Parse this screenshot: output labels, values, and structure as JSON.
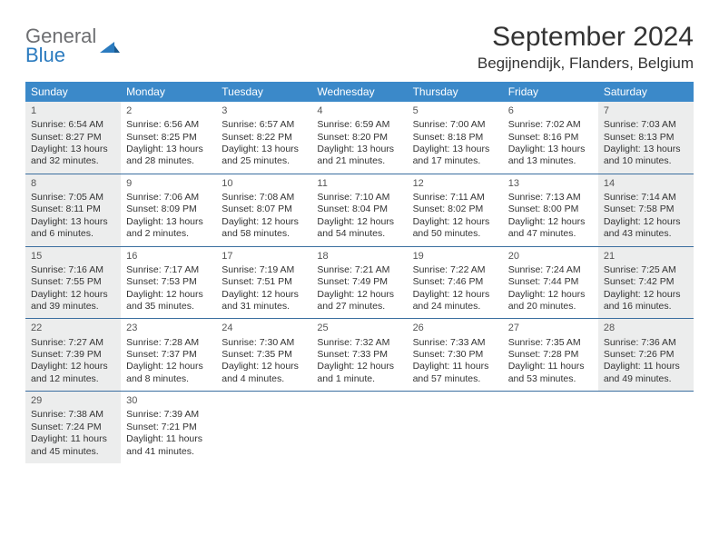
{
  "logo": {
    "text_general": "General",
    "text_blue": "Blue"
  },
  "header": {
    "month_title": "September 2024",
    "location": "Begijnendijk, Flanders, Belgium"
  },
  "colors": {
    "header_bar": "#3b89c9",
    "row_divider": "#3b6fa0",
    "shaded_cell": "#eceded",
    "logo_gray": "#6d6e71",
    "logo_blue": "#2b7bbf",
    "text": "#333333",
    "background": "#ffffff"
  },
  "calendar": {
    "day_headers": [
      "Sunday",
      "Monday",
      "Tuesday",
      "Wednesday",
      "Thursday",
      "Friday",
      "Saturday"
    ],
    "weeks": [
      [
        {
          "day": "1",
          "shaded": true,
          "sunrise": "Sunrise: 6:54 AM",
          "sunset": "Sunset: 8:27 PM",
          "daylight1": "Daylight: 13 hours",
          "daylight2": "and 32 minutes."
        },
        {
          "day": "2",
          "shaded": false,
          "sunrise": "Sunrise: 6:56 AM",
          "sunset": "Sunset: 8:25 PM",
          "daylight1": "Daylight: 13 hours",
          "daylight2": "and 28 minutes."
        },
        {
          "day": "3",
          "shaded": false,
          "sunrise": "Sunrise: 6:57 AM",
          "sunset": "Sunset: 8:22 PM",
          "daylight1": "Daylight: 13 hours",
          "daylight2": "and 25 minutes."
        },
        {
          "day": "4",
          "shaded": false,
          "sunrise": "Sunrise: 6:59 AM",
          "sunset": "Sunset: 8:20 PM",
          "daylight1": "Daylight: 13 hours",
          "daylight2": "and 21 minutes."
        },
        {
          "day": "5",
          "shaded": false,
          "sunrise": "Sunrise: 7:00 AM",
          "sunset": "Sunset: 8:18 PM",
          "daylight1": "Daylight: 13 hours",
          "daylight2": "and 17 minutes."
        },
        {
          "day": "6",
          "shaded": false,
          "sunrise": "Sunrise: 7:02 AM",
          "sunset": "Sunset: 8:16 PM",
          "daylight1": "Daylight: 13 hours",
          "daylight2": "and 13 minutes."
        },
        {
          "day": "7",
          "shaded": true,
          "sunrise": "Sunrise: 7:03 AM",
          "sunset": "Sunset: 8:13 PM",
          "daylight1": "Daylight: 13 hours",
          "daylight2": "and 10 minutes."
        }
      ],
      [
        {
          "day": "8",
          "shaded": true,
          "sunrise": "Sunrise: 7:05 AM",
          "sunset": "Sunset: 8:11 PM",
          "daylight1": "Daylight: 13 hours",
          "daylight2": "and 6 minutes."
        },
        {
          "day": "9",
          "shaded": false,
          "sunrise": "Sunrise: 7:06 AM",
          "sunset": "Sunset: 8:09 PM",
          "daylight1": "Daylight: 13 hours",
          "daylight2": "and 2 minutes."
        },
        {
          "day": "10",
          "shaded": false,
          "sunrise": "Sunrise: 7:08 AM",
          "sunset": "Sunset: 8:07 PM",
          "daylight1": "Daylight: 12 hours",
          "daylight2": "and 58 minutes."
        },
        {
          "day": "11",
          "shaded": false,
          "sunrise": "Sunrise: 7:10 AM",
          "sunset": "Sunset: 8:04 PM",
          "daylight1": "Daylight: 12 hours",
          "daylight2": "and 54 minutes."
        },
        {
          "day": "12",
          "shaded": false,
          "sunrise": "Sunrise: 7:11 AM",
          "sunset": "Sunset: 8:02 PM",
          "daylight1": "Daylight: 12 hours",
          "daylight2": "and 50 minutes."
        },
        {
          "day": "13",
          "shaded": false,
          "sunrise": "Sunrise: 7:13 AM",
          "sunset": "Sunset: 8:00 PM",
          "daylight1": "Daylight: 12 hours",
          "daylight2": "and 47 minutes."
        },
        {
          "day": "14",
          "shaded": true,
          "sunrise": "Sunrise: 7:14 AM",
          "sunset": "Sunset: 7:58 PM",
          "daylight1": "Daylight: 12 hours",
          "daylight2": "and 43 minutes."
        }
      ],
      [
        {
          "day": "15",
          "shaded": true,
          "sunrise": "Sunrise: 7:16 AM",
          "sunset": "Sunset: 7:55 PM",
          "daylight1": "Daylight: 12 hours",
          "daylight2": "and 39 minutes."
        },
        {
          "day": "16",
          "shaded": false,
          "sunrise": "Sunrise: 7:17 AM",
          "sunset": "Sunset: 7:53 PM",
          "daylight1": "Daylight: 12 hours",
          "daylight2": "and 35 minutes."
        },
        {
          "day": "17",
          "shaded": false,
          "sunrise": "Sunrise: 7:19 AM",
          "sunset": "Sunset: 7:51 PM",
          "daylight1": "Daylight: 12 hours",
          "daylight2": "and 31 minutes."
        },
        {
          "day": "18",
          "shaded": false,
          "sunrise": "Sunrise: 7:21 AM",
          "sunset": "Sunset: 7:49 PM",
          "daylight1": "Daylight: 12 hours",
          "daylight2": "and 27 minutes."
        },
        {
          "day": "19",
          "shaded": false,
          "sunrise": "Sunrise: 7:22 AM",
          "sunset": "Sunset: 7:46 PM",
          "daylight1": "Daylight: 12 hours",
          "daylight2": "and 24 minutes."
        },
        {
          "day": "20",
          "shaded": false,
          "sunrise": "Sunrise: 7:24 AM",
          "sunset": "Sunset: 7:44 PM",
          "daylight1": "Daylight: 12 hours",
          "daylight2": "and 20 minutes."
        },
        {
          "day": "21",
          "shaded": true,
          "sunrise": "Sunrise: 7:25 AM",
          "sunset": "Sunset: 7:42 PM",
          "daylight1": "Daylight: 12 hours",
          "daylight2": "and 16 minutes."
        }
      ],
      [
        {
          "day": "22",
          "shaded": true,
          "sunrise": "Sunrise: 7:27 AM",
          "sunset": "Sunset: 7:39 PM",
          "daylight1": "Daylight: 12 hours",
          "daylight2": "and 12 minutes."
        },
        {
          "day": "23",
          "shaded": false,
          "sunrise": "Sunrise: 7:28 AM",
          "sunset": "Sunset: 7:37 PM",
          "daylight1": "Daylight: 12 hours",
          "daylight2": "and 8 minutes."
        },
        {
          "day": "24",
          "shaded": false,
          "sunrise": "Sunrise: 7:30 AM",
          "sunset": "Sunset: 7:35 PM",
          "daylight1": "Daylight: 12 hours",
          "daylight2": "and 4 minutes."
        },
        {
          "day": "25",
          "shaded": false,
          "sunrise": "Sunrise: 7:32 AM",
          "sunset": "Sunset: 7:33 PM",
          "daylight1": "Daylight: 12 hours",
          "daylight2": "and 1 minute."
        },
        {
          "day": "26",
          "shaded": false,
          "sunrise": "Sunrise: 7:33 AM",
          "sunset": "Sunset: 7:30 PM",
          "daylight1": "Daylight: 11 hours",
          "daylight2": "and 57 minutes."
        },
        {
          "day": "27",
          "shaded": false,
          "sunrise": "Sunrise: 7:35 AM",
          "sunset": "Sunset: 7:28 PM",
          "daylight1": "Daylight: 11 hours",
          "daylight2": "and 53 minutes."
        },
        {
          "day": "28",
          "shaded": true,
          "sunrise": "Sunrise: 7:36 AM",
          "sunset": "Sunset: 7:26 PM",
          "daylight1": "Daylight: 11 hours",
          "daylight2": "and 49 minutes."
        }
      ],
      [
        {
          "day": "29",
          "shaded": true,
          "sunrise": "Sunrise: 7:38 AM",
          "sunset": "Sunset: 7:24 PM",
          "daylight1": "Daylight: 11 hours",
          "daylight2": "and 45 minutes."
        },
        {
          "day": "30",
          "shaded": false,
          "sunrise": "Sunrise: 7:39 AM",
          "sunset": "Sunset: 7:21 PM",
          "daylight1": "Daylight: 11 hours",
          "daylight2": "and 41 minutes."
        },
        {
          "empty": true
        },
        {
          "empty": true
        },
        {
          "empty": true
        },
        {
          "empty": true
        },
        {
          "empty": true
        }
      ]
    ]
  }
}
